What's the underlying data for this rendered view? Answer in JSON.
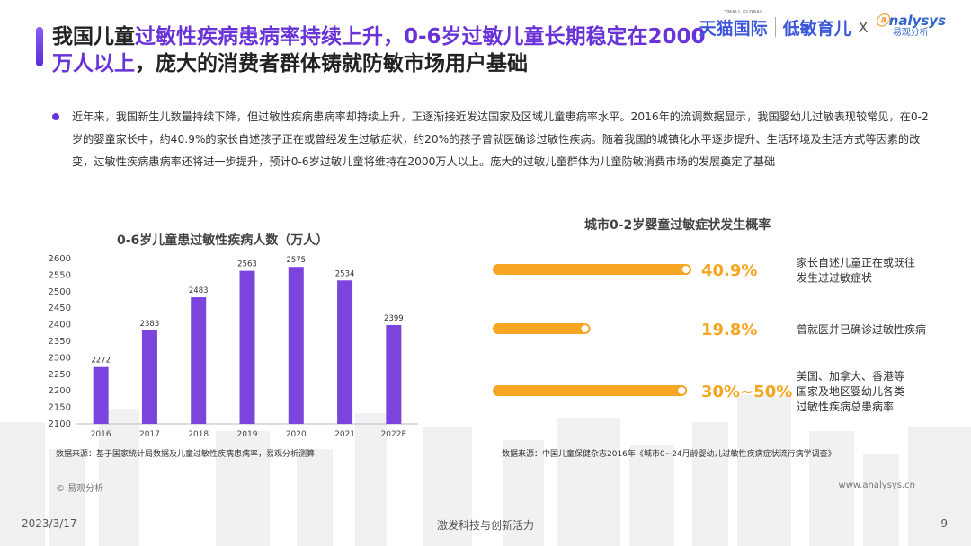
{
  "header": {
    "title_prefix": "我国儿童",
    "title_highlight": "过敏性疾病患病率持续上升，0-6岁过敏儿童长期稳定在2000万人以上",
    "title_suffix": "，庞大的消费者群体铸就防敏市场用户基础",
    "brand_tmall": "天猫国际",
    "brand_tmall_sub": "TMALL GLOBAL",
    "brand_low_allergy": "低敏育儿",
    "brand_x": "X",
    "brand_analysys": "nalysys",
    "brand_analysys_cn": "易观分析"
  },
  "paragraph": "近年来，我国新生儿数量持续下降，但过敏性疾病患病率却持续上升，正逐渐接近发达国家及区域儿童患病率水平。2016年的流调数据显示，我国婴幼儿过敏表现较常见，在0-2岁的婴童家长中，约40.9%的家长自述孩子正在或曾经发生过敏症状，约20%的孩子曾就医确诊过敏性疾病。随着我国的城镇化水平逐步提升、生活环境及生活方式等因素的改变，过敏性疾病患病率还将进一步提升，预计0-6岁过敏儿童将维持在2000万人以上。庞大的过敏儿童群体为儿童防敏消费市场的发展奠定了基础",
  "chart_data": [
    {
      "type": "bar",
      "title": "0-6岁儿童患过敏性疾病人数（万人）",
      "categories": [
        "2016",
        "2017",
        "2018",
        "2019",
        "2020",
        "2021",
        "2022E"
      ],
      "values": [
        2272,
        2383,
        2483,
        2563,
        2575,
        2534,
        2399
      ],
      "yticks": [
        2100,
        2150,
        2200,
        2250,
        2300,
        2350,
        2400,
        2450,
        2500,
        2550,
        2600
      ],
      "ylim": [
        2100,
        2600
      ],
      "color": "#7b45dd",
      "source": "数据来源：基于国家统计局数据及儿童过敏性疾病患病率，易观分析测算"
    },
    {
      "type": "bar",
      "orientation": "horizontal",
      "title": "城市0-2岁婴童过敏症状发生概率",
      "items": [
        {
          "value_label": "40.9%",
          "value": 40.9,
          "label_lines": [
            "家长自述儿童正在或既往",
            "发生过过敏症状"
          ]
        },
        {
          "value_label": "19.8%",
          "value": 19.8,
          "label_lines": [
            "曾就医并已确诊过敏性疾病"
          ]
        },
        {
          "value_label": "30%~50%",
          "value": 40,
          "label_lines": [
            "美国、加拿大、香港等",
            "国家及地区婴幼儿各类",
            "过敏性疾病总患病率"
          ]
        }
      ],
      "color": "#f6a623",
      "source": "数据来源：中国儿童保健杂志2016年《城市0~24月龄婴幼儿过敏性疾病症状流行病学调查》"
    }
  ],
  "footer": {
    "copyright": "© 易观分析",
    "website": "www.analysys.cn",
    "date": "2023/3/17",
    "center": "激发科技与创新活力",
    "page": "9"
  }
}
